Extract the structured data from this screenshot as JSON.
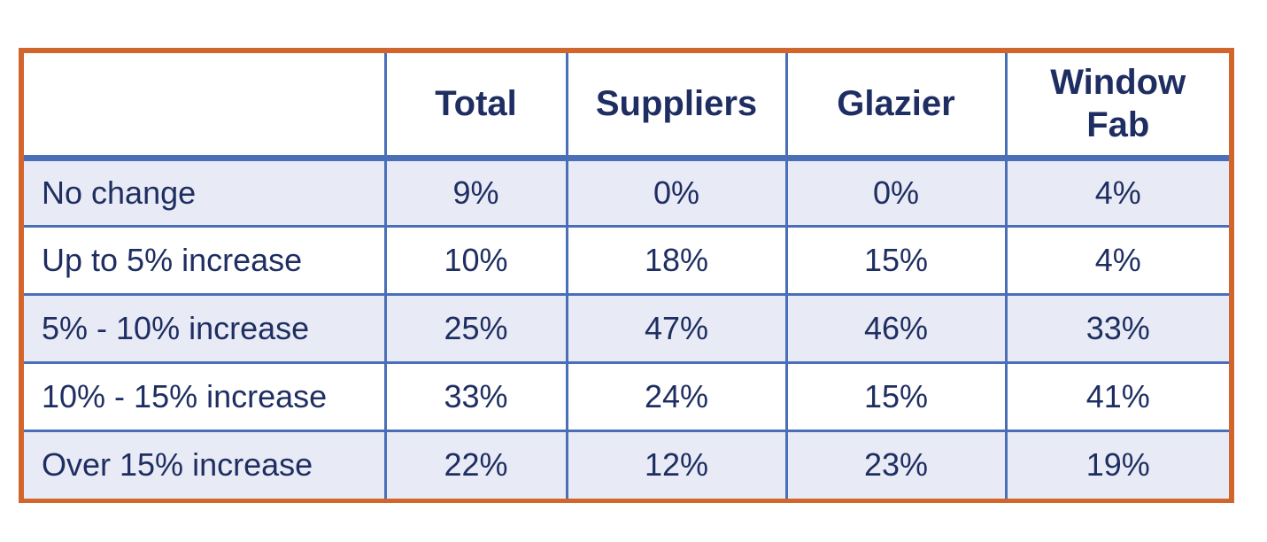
{
  "chart_data": {
    "type": "table",
    "columns": [
      "",
      "Total",
      "Suppliers",
      "Glazier",
      "Window Fab"
    ],
    "header_lines": {
      "window_fab_line1": "Window",
      "window_fab_line2": "Fab"
    },
    "rows": [
      {
        "label": "No change",
        "values": [
          "9%",
          "0%",
          "0%",
          "4%"
        ]
      },
      {
        "label": "Up to 5% increase",
        "values": [
          "10%",
          "18%",
          "15%",
          "4%"
        ]
      },
      {
        "label": "5% - 10% increase",
        "values": [
          "25%",
          "47%",
          "46%",
          "33%"
        ]
      },
      {
        "label": "10% - 15% increase",
        "values": [
          "33%",
          "24%",
          "15%",
          "41%"
        ]
      },
      {
        "label": "Over 15% increase",
        "values": [
          "22%",
          "12%",
          "23%",
          "19%"
        ]
      }
    ]
  },
  "colors": {
    "frame_border": "#d1652c",
    "grid_lines": "#4a6fb8",
    "text": "#1f2e62",
    "shaded_row": "#e8ebf5",
    "plain_row": "#ffffff"
  }
}
